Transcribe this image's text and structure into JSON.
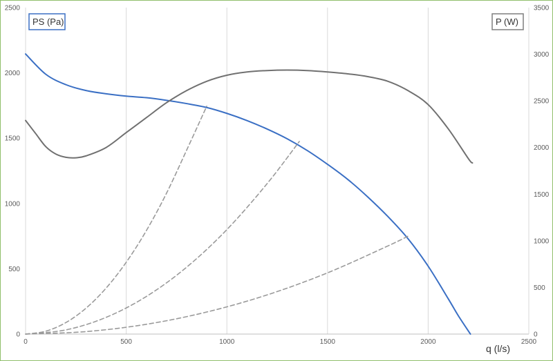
{
  "chart_data": {
    "type": "line",
    "xlabel": "q (l/s)",
    "ylabel_left": "PS (Pa)",
    "ylabel_right": "P (W)",
    "xlim": [
      0,
      2500
    ],
    "ylim_left": [
      0,
      2500
    ],
    "ylim_right": [
      0,
      3500
    ],
    "x_ticks": [
      0,
      500,
      1000,
      1500,
      2000,
      2500
    ],
    "y_left_ticks": [
      0,
      500,
      1000,
      1500,
      2000,
      2500
    ],
    "y_right_ticks": [
      0,
      500,
      1000,
      1500,
      2000,
      2500,
      3000,
      3500
    ],
    "grid": "vertical",
    "series": [
      {
        "axis": "left",
        "style": "solid",
        "color": "#3a6fc4",
        "x": [
          0,
          100,
          200,
          300,
          400,
          500,
          600,
          700,
          800,
          900,
          1000,
          1100,
          1200,
          1300,
          1400,
          1500,
          1600,
          1700,
          1800,
          1900,
          2000,
          2100,
          2150,
          2210
        ],
        "y": [
          2145,
          1990,
          1910,
          1865,
          1840,
          1822,
          1810,
          1790,
          1765,
          1735,
          1690,
          1635,
          1570,
          1495,
          1405,
          1300,
          1185,
          1050,
          900,
          730,
          520,
          270,
          140,
          0
        ]
      },
      {
        "axis": "right",
        "style": "solid",
        "color": "#707070",
        "x": [
          0,
          50,
          100,
          150,
          200,
          250,
          300,
          400,
          500,
          600,
          700,
          800,
          900,
          1000,
          1100,
          1200,
          1300,
          1400,
          1500,
          1600,
          1700,
          1800,
          1900,
          2000,
          2100,
          2200,
          2220
        ],
        "y": [
          2290,
          2150,
          2010,
          1930,
          1895,
          1890,
          1910,
          2000,
          2160,
          2320,
          2480,
          2610,
          2710,
          2775,
          2810,
          2825,
          2830,
          2825,
          2810,
          2790,
          2760,
          2710,
          2610,
          2460,
          2200,
          1880,
          1835
        ]
      },
      {
        "axis": "left",
        "style": "dashed",
        "color": "#9a9a9a",
        "x": [
          0,
          100,
          200,
          300,
          400,
          500,
          600,
          700,
          800,
          900
        ],
        "y": [
          0,
          22,
          88,
          198,
          352,
          550,
          792,
          1078,
          1408,
          1745
        ]
      },
      {
        "axis": "left",
        "style": "dashed",
        "color": "#9a9a9a",
        "x": [
          0,
          200,
          400,
          600,
          800,
          1000,
          1200,
          1360
        ],
        "y": [
          0,
          32,
          128,
          288,
          512,
          800,
          1152,
          1475
        ]
      },
      {
        "axis": "left",
        "style": "dashed",
        "color": "#9a9a9a",
        "x": [
          0,
          300,
          600,
          900,
          1200,
          1500,
          1800,
          1900
        ],
        "y": [
          0,
          19,
          75,
          169,
          300,
          469,
          675,
          750
        ]
      }
    ]
  }
}
